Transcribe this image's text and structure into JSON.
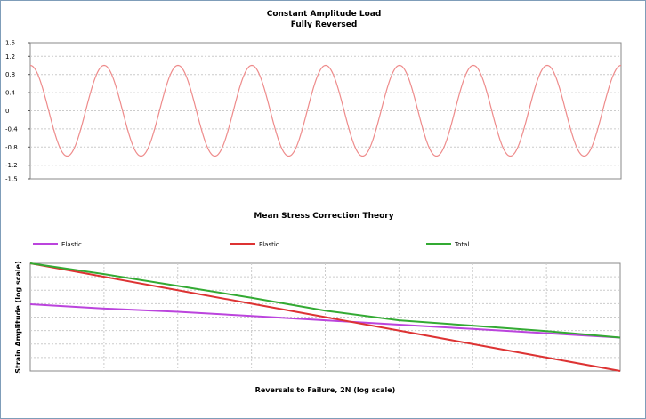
{
  "charts": {
    "load": {
      "title": "Constant Amplitude Load",
      "subtitle": "Fully Reversed"
    },
    "correction": {
      "title": "Mean Stress Correction Theory",
      "xlabel": "Reversals to Failure, 2N (log scale)",
      "ylabel": "Strain Amplitude (log scale)"
    }
  },
  "chart_data": [
    {
      "type": "line",
      "title": "Constant Amplitude Load",
      "subtitle": "Fully Reversed",
      "xlabel": "",
      "ylabel": "",
      "yticks": [
        "1.5",
        "1.2",
        "0.8",
        "0.4",
        "0",
        "-0.4",
        "-0.8",
        "-1.2",
        "-1.5"
      ],
      "ylim": [
        -1.5,
        1.5
      ],
      "grid": true,
      "series": [
        {
          "color": "#ee8b8b",
          "function": "cos",
          "amplitude": 1.0,
          "cycles": 8
        }
      ]
    },
    {
      "type": "line",
      "title": "Mean Stress Correction Theory",
      "xlabel": "Reversals to Failure, 2N (log scale)",
      "ylabel": "Strain Amplitude (log scale)",
      "x_scale": "log",
      "y_scale": "log",
      "grid": true,
      "legend_position": "top",
      "x": [
        0,
        0.125,
        0.25,
        0.375,
        0.5,
        0.625,
        0.75,
        0.875,
        1.0
      ],
      "series": [
        {
          "name": "Elastic",
          "color": "#bb44dd",
          "values": [
            0.62,
            0.58,
            0.55,
            0.51,
            0.47,
            0.43,
            0.39,
            0.35,
            0.31
          ]
        },
        {
          "name": "Plastic",
          "color": "#dd3333",
          "values": [
            1.0,
            0.875,
            0.75,
            0.625,
            0.5,
            0.375,
            0.25,
            0.125,
            0.0
          ]
        },
        {
          "name": "Total",
          "color": "#33aa33",
          "values": [
            1.0,
            0.9,
            0.79,
            0.68,
            0.56,
            0.47,
            0.42,
            0.37,
            0.31
          ]
        }
      ]
    }
  ]
}
